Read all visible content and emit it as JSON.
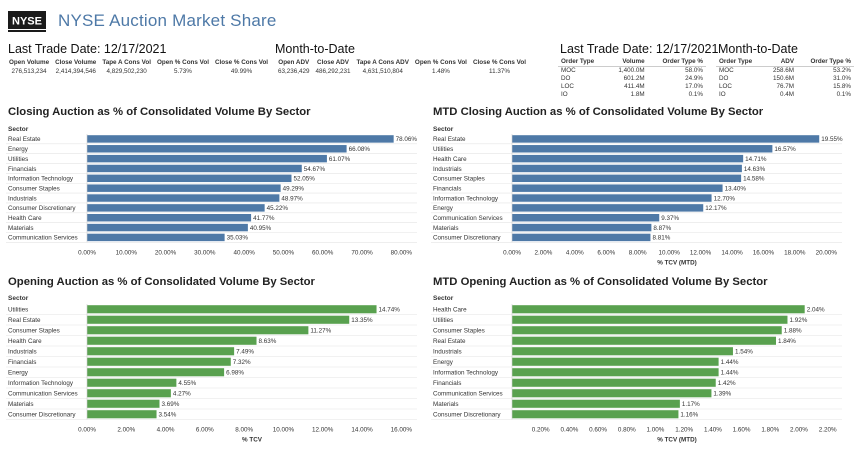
{
  "app": {
    "title": "NYSE Auction Market Share",
    "logo_text": "NYSE"
  },
  "left_kpis": {
    "last_trade_title": "Last Trade Date: 12/17/2021",
    "mtd_title": "Month-to-Date",
    "daily_headers": [
      "Open Volume",
      "Close Volume",
      "Tape A Cons Vol",
      "Open % Cons Vol",
      "Close % Cons Vol"
    ],
    "daily_values": [
      "276,513,234",
      "2,414,394,546",
      "4,829,502,230",
      "5.73%",
      "49.99%"
    ],
    "mtd_headers": [
      "Open ADV",
      "Close ADV",
      "Tape A Cons ADV",
      "Open % Cons Vol",
      "Close % Cons Vol"
    ],
    "mtd_values": [
      "63,236,429",
      "486,292,231",
      "4,631,510,804",
      "1.48%",
      "11.37%"
    ]
  },
  "right_kpis": {
    "last_trade_title": "Last Trade Date: 12/17/2021",
    "mtd_title": "Month-to-Date",
    "daily_headers": [
      "Order Type",
      "Volume",
      "Order Type %"
    ],
    "daily_rows": [
      [
        "MOC",
        "1,400.0M",
        "58.0%"
      ],
      [
        "DO",
        "601.2M",
        "24.9%"
      ],
      [
        "LOC",
        "411.4M",
        "17.0%"
      ],
      [
        "IO",
        "1.8M",
        "0.1%"
      ]
    ],
    "mtd_headers": [
      "Order Type",
      "ADV",
      "Order Type %"
    ],
    "mtd_rows": [
      [
        "MOC",
        "258.6M",
        "53.2%"
      ],
      [
        "DO",
        "150.6M",
        "31.0%"
      ],
      [
        "LOC",
        "76.7M",
        "15.8%"
      ],
      [
        "IO",
        "0.4M",
        "0.1%"
      ]
    ]
  },
  "charts": {
    "sector_label": "Sector",
    "close_day_title": "Closing Auction as % of Consolidated Volume By Sector",
    "close_mtd_title": "MTD Closing Auction as % of Consolidated Volume By Sector",
    "open_day_title": "Opening Auction as % of Consolidated Volume By Sector",
    "open_mtd_title": "MTD Opening Auction as % of Consolidated Volume By Sector"
  },
  "chart_data": [
    {
      "type": "bar",
      "title": "Closing Auction as % of Consolidated Volume By Sector",
      "ylabel": "Sector",
      "xlabel": "",
      "categories": [
        "Real Estate",
        "Energy",
        "Utilities",
        "Financials",
        "Information Technology",
        "Consumer Staples",
        "Industrials",
        "Consumer Discretionary",
        "Health Care",
        "Materials",
        "Communication Services"
      ],
      "values": [
        78.06,
        66.08,
        61.07,
        54.67,
        52.05,
        49.29,
        48.97,
        45.22,
        41.77,
        40.95,
        35.03
      ],
      "value_labels": [
        "78.06%",
        "66.08%",
        "61.07%",
        "54.67%",
        "52.05%",
        "49.29%",
        "48.97%",
        "45.22%",
        "41.77%",
        "40.95%",
        "35.03%"
      ],
      "ticks": [
        0,
        10,
        20,
        30,
        40,
        50,
        60,
        70,
        80
      ],
      "tick_labels": [
        "0.00%",
        "10.00%",
        "20.00%",
        "30.00%",
        "40.00%",
        "50.00%",
        "60.00%",
        "70.00%",
        "80.00%"
      ],
      "xlim": [
        0,
        84
      ],
      "color": "#4e79a7"
    },
    {
      "type": "bar",
      "title": "MTD Closing Auction as % of Consolidated Volume By Sector",
      "ylabel": "Sector",
      "xlabel": "% TCV (MTD)",
      "categories": [
        "Real Estate",
        "Utilities",
        "Health Care",
        "Industrials",
        "Consumer Staples",
        "Financials",
        "Information Technology",
        "Energy",
        "Communication Services",
        "Materials",
        "Consumer Discretionary"
      ],
      "values": [
        19.55,
        16.57,
        14.71,
        14.63,
        14.58,
        13.4,
        12.7,
        12.17,
        9.37,
        8.87,
        8.81
      ],
      "value_labels": [
        "19.55%",
        "16.57%",
        "14.71%",
        "14.63%",
        "14.58%",
        "13.40%",
        "12.70%",
        "12.17%",
        "9.37%",
        "8.87%",
        "8.81%"
      ],
      "ticks": [
        0,
        2,
        4,
        6,
        8,
        10,
        12,
        14,
        16,
        18,
        20
      ],
      "tick_labels": [
        "0.00%",
        "2.00%",
        "4.00%",
        "6.00%",
        "8.00%",
        "10.00%",
        "12.00%",
        "14.00%",
        "16.00%",
        "18.00%",
        "20.00%"
      ],
      "xlim": [
        0,
        21
      ],
      "color": "#4e79a7"
    },
    {
      "type": "bar",
      "title": "Opening Auction as % of Consolidated Volume By Sector",
      "ylabel": "Sector",
      "xlabel": "% TCV",
      "categories": [
        "Utilities",
        "Real Estate",
        "Consumer Staples",
        "Health Care",
        "Industrials",
        "Financials",
        "Energy",
        "Information Technology",
        "Communication Services",
        "Materials",
        "Consumer Discretionary"
      ],
      "values": [
        14.74,
        13.35,
        11.27,
        8.63,
        7.49,
        7.32,
        6.98,
        4.55,
        4.27,
        3.69,
        3.54
      ],
      "value_labels": [
        "14.74%",
        "13.35%",
        "11.27%",
        "8.63%",
        "7.49%",
        "7.32%",
        "6.98%",
        "4.55%",
        "4.27%",
        "3.69%",
        "3.54%"
      ],
      "ticks": [
        0,
        2,
        4,
        6,
        8,
        10,
        12,
        14,
        16
      ],
      "tick_labels": [
        "0.00%",
        "2.00%",
        "4.00%",
        "6.00%",
        "8.00%",
        "10.00%",
        "12.00%",
        "14.00%",
        "16.00%"
      ],
      "xlim": [
        0,
        16.8
      ],
      "color": "#59a14f"
    },
    {
      "type": "bar",
      "title": "MTD Opening Auction as % of Consolidated Volume By Sector",
      "ylabel": "Sector",
      "xlabel": "% TCV (MTD)",
      "categories": [
        "Health Care",
        "Utilities",
        "Consumer Staples",
        "Real Estate",
        "Industrials",
        "Energy",
        "Information Technology",
        "Financials",
        "Communication Services",
        "Materials",
        "Consumer Discretionary"
      ],
      "values": [
        2.04,
        1.92,
        1.88,
        1.84,
        1.54,
        1.44,
        1.44,
        1.42,
        1.39,
        1.17,
        1.16
      ],
      "value_labels": [
        "2.04%",
        "1.92%",
        "1.88%",
        "1.84%",
        "1.54%",
        "1.44%",
        "1.44%",
        "1.42%",
        "1.39%",
        "1.17%",
        "1.16%"
      ],
      "ticks": [
        0.2,
        0.4,
        0.6,
        0.8,
        1.0,
        1.2,
        1.4,
        1.6,
        1.8,
        2.0,
        2.2
      ],
      "tick_labels": [
        "0.20%",
        "0.40%",
        "0.60%",
        "0.80%",
        "1.00%",
        "1.20%",
        "1.40%",
        "1.60%",
        "1.80%",
        "2.00%",
        "2.20%"
      ],
      "xlim": [
        0,
        2.3
      ],
      "color": "#59a14f"
    }
  ]
}
